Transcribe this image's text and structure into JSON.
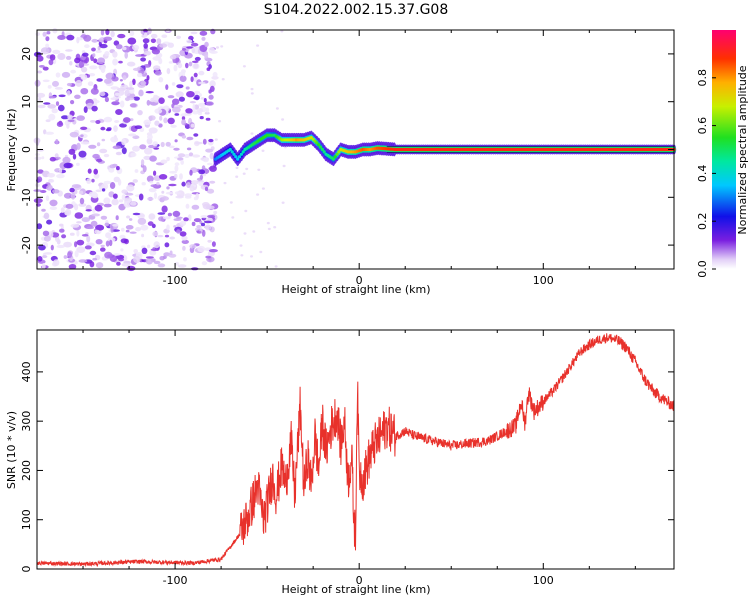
{
  "title": "S104.2022.002.15.37.G08",
  "chart_data": [
    {
      "type": "heatmap",
      "xlabel": "Height of straight line (km)",
      "ylabel": "Frequency (Hz)",
      "xlim": [
        -175,
        171
      ],
      "ylim": [
        -25,
        25
      ],
      "xticks": [
        -100,
        0,
        100
      ],
      "yticks": [
        20,
        10,
        0,
        -10,
        -20
      ],
      "colorbar": {
        "label": "Normalized spectral amplitude",
        "range": [
          0,
          1
        ],
        "ticks": [
          "0.0",
          "0.2",
          "0.4",
          "0.6",
          "0.8"
        ],
        "tick_values": [
          0,
          0.2,
          0.4,
          0.6,
          0.8
        ]
      },
      "noise_region_x": [
        -175,
        -78
      ],
      "ridge": {
        "x": [
          -78,
          -74,
          -70,
          -66,
          -62,
          -58,
          -54,
          -50,
          -46,
          -42,
          -38,
          -34,
          -30,
          -26,
          -22,
          -18,
          -14,
          -10,
          -6,
          -2,
          2,
          6,
          10,
          20,
          40,
          80,
          120,
          171
        ],
        "freq": [
          -2,
          -1,
          0,
          -2,
          0,
          1,
          2,
          3,
          3,
          2,
          2,
          2,
          2,
          2.5,
          1,
          -1,
          -2,
          0,
          -0.5,
          -0.5,
          0,
          0,
          0.3,
          0,
          0,
          0,
          0,
          0
        ],
        "amplitude": [
          0.3,
          0.35,
          0.4,
          0.35,
          0.45,
          0.5,
          0.55,
          0.55,
          0.5,
          0.65,
          0.7,
          0.8,
          0.75,
          0.7,
          0.55,
          0.45,
          0.5,
          0.7,
          0.75,
          0.8,
          0.85,
          0.8,
          0.85,
          0.9,
          0.9,
          0.9,
          0.9,
          0.9
        ]
      }
    },
    {
      "type": "line",
      "xlabel": "Height of straight line (km)",
      "ylabel": "SNR (10 * v/v)",
      "xlim": [
        -175,
        171
      ],
      "ylim": [
        0,
        485
      ],
      "xticks": [
        -100,
        0,
        100
      ],
      "yticks": [
        0,
        100,
        200,
        300,
        400
      ],
      "color": "#e8312b",
      "series": [
        {
          "x": [
            -175,
            -150,
            -120,
            -90,
            -75,
            -65,
            -60,
            -55,
            -52,
            -50,
            -47,
            -45,
            -42,
            -40,
            -37,
            -35,
            -32,
            -31,
            -30,
            -28,
            -26,
            -24,
            -22,
            -20,
            -18,
            -15,
            -12,
            -10,
            -8,
            -6,
            -4,
            -3,
            -2,
            -1,
            0,
            2,
            5,
            8,
            10,
            15,
            20,
            25,
            30,
            40,
            50,
            60,
            70,
            80,
            85,
            88,
            90,
            92,
            95,
            100,
            105,
            110,
            120,
            125,
            130,
            135,
            140,
            145,
            150,
            155,
            160,
            165,
            171
          ],
          "y": [
            12,
            10,
            15,
            12,
            20,
            70,
            110,
            170,
            100,
            130,
            190,
            150,
            210,
            170,
            260,
            150,
            330,
            250,
            160,
            230,
            170,
            270,
            200,
            300,
            240,
            290,
            320,
            250,
            300,
            180,
            230,
            110,
            60,
            380,
            200,
            180,
            220,
            250,
            260,
            290,
            270,
            280,
            270,
            260,
            250,
            255,
            260,
            280,
            290,
            340,
            295,
            360,
            320,
            340,
            360,
            385,
            440,
            455,
            465,
            470,
            465,
            450,
            420,
            385,
            360,
            345,
            330
          ]
        }
      ]
    }
  ]
}
